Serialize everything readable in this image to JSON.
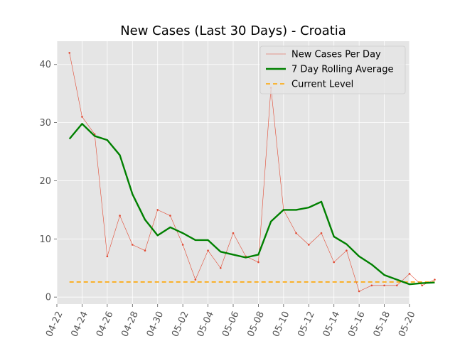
{
  "chart_data": {
    "type": "line",
    "title": "New Cases (Last 30 Days) - Croatia",
    "xlabel": "",
    "ylabel": "",
    "x_start": "2020-04-23",
    "x": [
      "04-23",
      "04-24",
      "04-25",
      "04-26",
      "04-27",
      "04-28",
      "04-29",
      "04-30",
      "05-01",
      "05-02",
      "05-03",
      "05-04",
      "05-05",
      "05-06",
      "05-07",
      "05-08",
      "05-09",
      "05-10",
      "05-11",
      "05-12",
      "05-13",
      "05-14",
      "05-15",
      "05-16",
      "05-17",
      "05-18",
      "05-19",
      "05-20",
      "05-21",
      "05-22"
    ],
    "xlim": [
      "04-22",
      "05-20"
    ],
    "x_ticks": [
      "04-22",
      "04-24",
      "04-26",
      "04-28",
      "04-30",
      "05-02",
      "05-04",
      "05-06",
      "05-08",
      "05-10",
      "05-12",
      "05-14",
      "05-16",
      "05-18",
      "05-20"
    ],
    "ylim": [
      -1.2,
      44
    ],
    "y_ticks": [
      0,
      10,
      20,
      30,
      40
    ],
    "grid": true,
    "legend_position": "top-right",
    "series": [
      {
        "name": "New Cases Per Day",
        "color": "#e24a33",
        "style": "thin-line-with-dots",
        "values": [
          42,
          31,
          28,
          7,
          14,
          9,
          8,
          15,
          14,
          9,
          3,
          8,
          5,
          11,
          7,
          6,
          36,
          15,
          11,
          9,
          11,
          6,
          8,
          1,
          2,
          2,
          2,
          4,
          2,
          3
        ]
      },
      {
        "name": "7 Day Rolling Average",
        "color": "#008000",
        "style": "thick-line",
        "values": [
          27.2,
          29.8,
          27.7,
          27.0,
          24.4,
          17.7,
          13.3,
          10.6,
          12.0,
          11.0,
          9.8,
          9.8,
          7.8,
          7.3,
          6.8,
          7.3,
          13.0,
          15.0,
          15.0,
          15.4,
          16.4,
          10.4,
          9.1,
          7.0,
          5.6,
          3.8,
          3.0,
          2.2,
          2.4,
          2.5
        ]
      },
      {
        "name": "Current Level",
        "color": "#ffa500",
        "style": "dashed-line",
        "values": [
          2.6,
          2.6,
          2.6,
          2.6,
          2.6,
          2.6,
          2.6,
          2.6,
          2.6,
          2.6,
          2.6,
          2.6,
          2.6,
          2.6,
          2.6,
          2.6,
          2.6,
          2.6,
          2.6,
          2.6,
          2.6,
          2.6,
          2.6,
          2.6,
          2.6,
          2.6,
          2.6,
          2.6,
          2.6,
          2.6
        ]
      }
    ],
    "colors": {
      "plot_background": "#e5e5e5",
      "grid": "#ffffff",
      "tick_label": "#555555"
    }
  }
}
